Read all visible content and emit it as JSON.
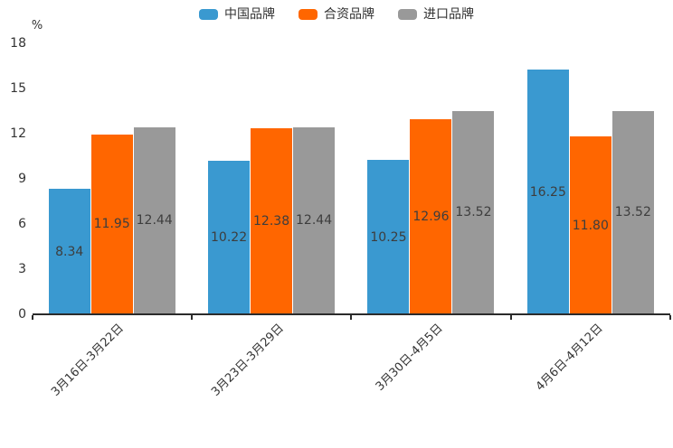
{
  "chart_data": {
    "type": "bar",
    "title": "",
    "xlabel": "",
    "ylabel": "%",
    "ylim": [
      0,
      18
    ],
    "yticks": [
      0,
      3,
      6,
      9,
      12,
      15,
      18
    ],
    "grid": false,
    "legend_position": "top",
    "categories": [
      "3月16日-3月22日",
      "3月23日-3月29日",
      "3月30日-4月5日",
      "4月6日-4月12日"
    ],
    "series": [
      {
        "name": "中国品牌",
        "color": "#3A99D0",
        "values": [
          8.34,
          10.22,
          10.25,
          16.25
        ],
        "labels": [
          "8.34",
          "10.22",
          "10.25",
          "16.25"
        ]
      },
      {
        "name": "合资品牌",
        "color": "#FF6600",
        "values": [
          11.95,
          12.38,
          12.96,
          11.8
        ],
        "labels": [
          "11.95",
          "12.38",
          "12.96",
          "11.80"
        ]
      },
      {
        "name": "进口品牌",
        "color": "#999999",
        "values": [
          12.44,
          12.44,
          13.52,
          13.52
        ],
        "labels": [
          "12.44",
          "12.44",
          "13.52",
          "13.52"
        ]
      }
    ],
    "colors": {
      "axis": "#2b2b2b",
      "tick_label": "#333333",
      "value_label": "#3d3d3d",
      "background": "#ffffff"
    }
  }
}
